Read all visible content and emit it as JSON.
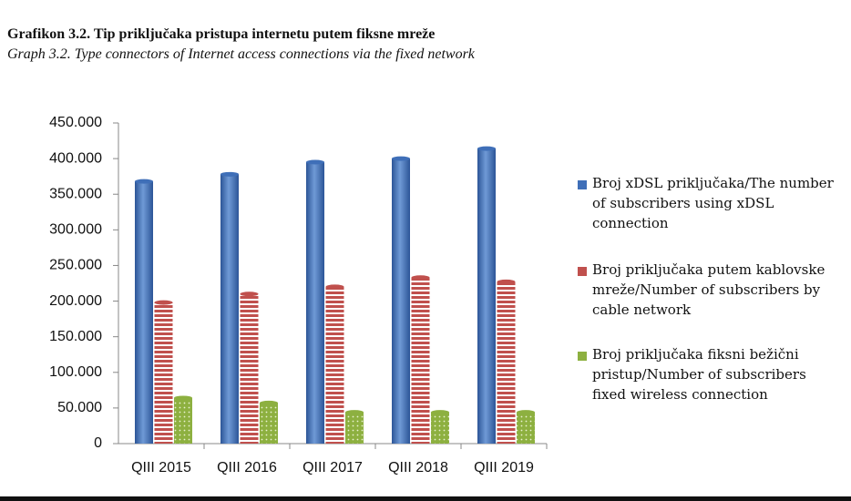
{
  "chart_data": {
    "type": "bar",
    "title": "Grafikon 3.2. Tip  priključaka pristupa internetu putem fiksne mreže",
    "subtitle": "Graph 3.2. Type connectors of Internet  access connections via the fixed network",
    "categories": [
      "QIII 2015",
      "QIII 2016",
      "QIII 2017",
      "QIII 2018",
      "QIII 2019"
    ],
    "series": [
      {
        "name": "Broj  xDSL priključaka/The number of subscribers using  xDSL connection",
        "color": "#3f6fb8",
        "values": [
          368000,
          378000,
          395000,
          400000,
          414000
        ]
      },
      {
        "name": "Broj priključaka putem  kablovske mreže/Number of subscribers by cable network",
        "color": "#c0504d",
        "values": [
          198000,
          210000,
          220000,
          233000,
          227000
        ]
      },
      {
        "name": "Broj priključaka fiksni bežični pristup/Number of subscribers fixed wireless connection",
        "color": "#8db040",
        "values": [
          64000,
          57000,
          44000,
          44000,
          44000
        ]
      }
    ],
    "ylim": [
      0,
      450000
    ],
    "yticks": [
      0,
      {
        "value": 50000,
        "label": "50.000"
      },
      {
        "value": 100000,
        "label": "100.000"
      },
      {
        "value": 150000,
        "label": "150.000"
      },
      {
        "value": 200000,
        "label": "200.000"
      },
      {
        "value": 250000,
        "label": "250.000"
      },
      {
        "value": 300000,
        "label": "300.000"
      },
      {
        "value": 350000,
        "label": "350.000"
      },
      {
        "value": 400000,
        "label": "400.000"
      },
      {
        "value": 450000,
        "label": "450.000"
      }
    ]
  }
}
